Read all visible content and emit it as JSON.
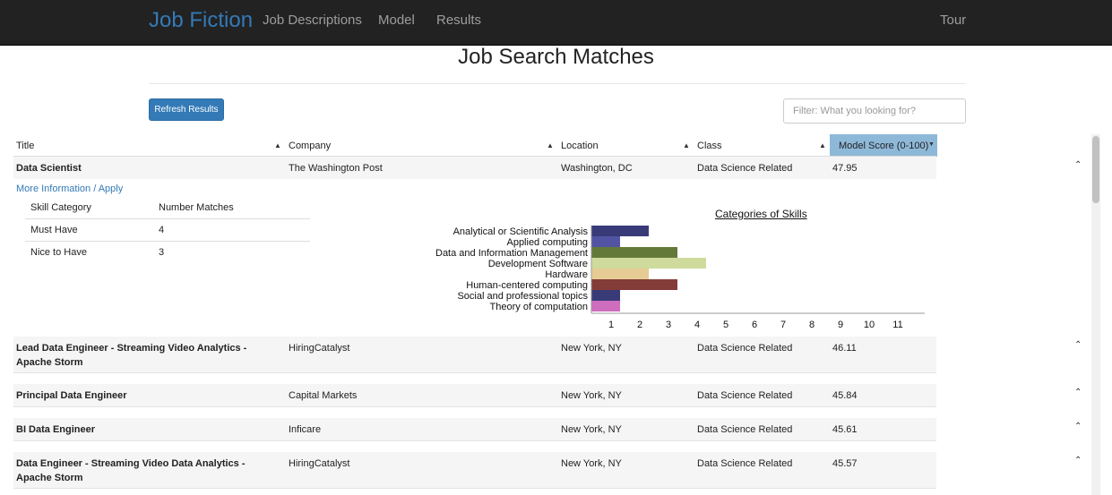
{
  "nav": {
    "brand": "Job Fiction",
    "links": [
      "Job Descriptions",
      "Model",
      "Results"
    ],
    "tour": "Tour"
  },
  "page": {
    "title": "Job Search Matches",
    "refresh_label": "Refresh Results",
    "filter_placeholder": "Filter: What you looking for?"
  },
  "table": {
    "headers": [
      "Title",
      "Company",
      "Location",
      "Class",
      "Model Score (0-100)"
    ],
    "rows": [
      {
        "title": "Data Scientist",
        "company": "The Washington Post",
        "location": "Washington, DC",
        "class": "Data Science Related",
        "score": "47.95"
      },
      {
        "title": "Lead Data Engineer - Streaming Video Analytics - Apache Storm",
        "company": "HiringCatalyst",
        "location": "New York, NY",
        "class": "Data Science Related",
        "score": "46.11"
      },
      {
        "title": "Principal Data Engineer",
        "company": "Capital Markets",
        "location": "New York, NY",
        "class": "Data Science Related",
        "score": "45.84"
      },
      {
        "title": "BI Data Engineer",
        "company": "Inficare",
        "location": "New York, NY",
        "class": "Data Science Related",
        "score": "45.61"
      },
      {
        "title": "Data Engineer - Streaming Video Data Analytics - Apache Storm",
        "company": "HiringCatalyst",
        "location": "New York, NY",
        "class": "Data Science Related",
        "score": "45.57"
      }
    ]
  },
  "detail": {
    "more_info": "More Information / Apply",
    "skill_headers": [
      "Skill Category",
      "Number Matches"
    ],
    "skill_rows": [
      {
        "category": "Must Have",
        "matches": "4"
      },
      {
        "category": "Nice to Have",
        "matches": "3"
      }
    ]
  },
  "chart_data": {
    "type": "bar",
    "orientation": "horizontal",
    "title": "Categories of Skills",
    "categories": [
      "Analytical or Scientific Analysis",
      "Applied computing",
      "Data and Information Management",
      "Development Software",
      "Hardware",
      "Human-centered computing",
      "Social and professional topics",
      "Theory of computation"
    ],
    "values": [
      2,
      1,
      3,
      4,
      2,
      3,
      1,
      1
    ],
    "colors": [
      "#393b79",
      "#5254a3",
      "#637939",
      "#cedb9c",
      "#e7cb94",
      "#843c39",
      "#393b79",
      "#ce6dbd"
    ],
    "x_ticks": [
      1,
      2,
      3,
      4,
      5,
      6,
      7,
      8,
      9,
      10,
      11
    ],
    "xlim": [
      0,
      12
    ]
  }
}
